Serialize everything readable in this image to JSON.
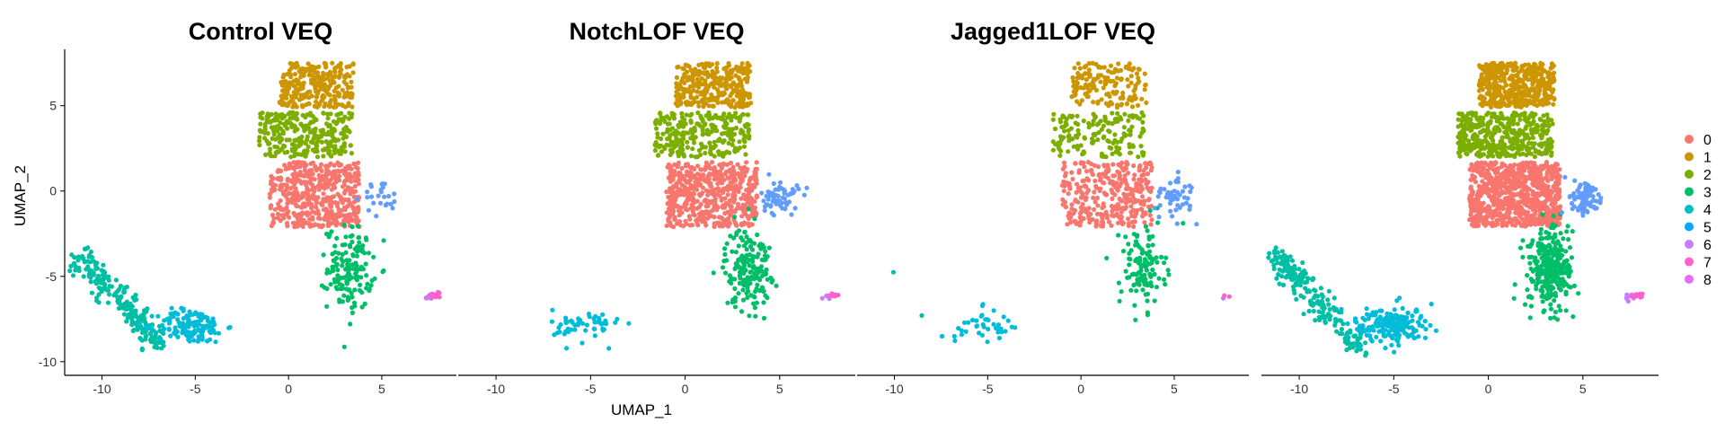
{
  "chart_data": {
    "type": "scatter",
    "xlabel": "UMAP_1",
    "ylabel": "UMAP_2",
    "xlim": [
      -12,
      9
    ],
    "ylim": [
      -10.8,
      8.3
    ],
    "x_ticks": [
      -10,
      -5,
      0,
      5
    ],
    "y_ticks": [
      -10,
      -5,
      0,
      5
    ],
    "x_tick_labels": [
      "-10",
      "-5",
      "0",
      "5"
    ],
    "y_tick_labels": [
      "-10",
      "-5",
      "0",
      "5"
    ],
    "grid": false,
    "legend_position": "right",
    "legend": [
      {
        "label": "0",
        "color": "#F8766D"
      },
      {
        "label": "1",
        "color": "#CD9600"
      },
      {
        "label": "2",
        "color": "#7CAE00"
      },
      {
        "label": "3",
        "color": "#00BE67"
      },
      {
        "label": "4",
        "color": "#00BFC4"
      },
      {
        "label": "5",
        "color": "#00A9FF"
      },
      {
        "label": "6",
        "color": "#C77CFF"
      },
      {
        "label": "7",
        "color": "#FF61CC"
      },
      {
        "label": "8",
        "color": "#E76BF3"
      }
    ],
    "clusters": [
      {
        "id": "0",
        "color": "#F8766D",
        "center": [
          1.4,
          -0.2
        ],
        "spread": [
          1.7,
          1.3
        ]
      },
      {
        "id": "1",
        "color": "#CD9600",
        "center": [
          1.5,
          6.2
        ],
        "spread": [
          1.2,
          0.8
        ]
      },
      {
        "id": "2",
        "color": "#7CAE00",
        "center": [
          0.9,
          3.3
        ],
        "spread": [
          1.5,
          0.8
        ]
      },
      {
        "id": "3",
        "color": "#00BE67",
        "center": [
          3.3,
          -4.5
        ],
        "spread": [
          0.6,
          1.2
        ]
      },
      {
        "id": "4",
        "color": "#00BFA5",
        "center": [
          -8.8,
          -6.5
        ],
        "spread": [
          1.2,
          1.5
        ]
      },
      {
        "id": "5",
        "color": "#00BCD8",
        "center": [
          -5.2,
          -7.9
        ],
        "spread": [
          0.9,
          0.5
        ]
      },
      {
        "id": "6",
        "color": "#619CFF",
        "center": [
          5.0,
          -0.4
        ],
        "spread": [
          0.5,
          0.5
        ]
      },
      {
        "id": "7",
        "color": "#C77CFF",
        "center": [
          7.6,
          -6.2
        ],
        "spread": [
          0.15,
          0.1
        ]
      },
      {
        "id": "8",
        "color": "#FF61CC",
        "center": [
          7.9,
          -6.1
        ],
        "spread": [
          0.15,
          0.1
        ]
      }
    ],
    "panels": [
      {
        "title": "Control VEQ",
        "counts": {
          "0": 480,
          "1": 260,
          "2": 280,
          "3": 150,
          "4": 220,
          "5": 150,
          "6": 25,
          "7": 8,
          "8": 10
        }
      },
      {
        "title": "NotchLOF VEQ",
        "counts": {
          "0": 520,
          "1": 300,
          "2": 260,
          "3": 180,
          "4": 0,
          "5": 55,
          "6": 60,
          "7": 4,
          "8": 8
        }
      },
      {
        "title": "Jagged1LOF VEQ",
        "counts": {
          "0": 320,
          "1": 150,
          "2": 150,
          "3": 120,
          "4": 2,
          "5": 40,
          "6": 50,
          "7": 1,
          "8": 2
        }
      },
      {
        "title": "",
        "counts": {
          "0": 800,
          "1": 450,
          "2": 420,
          "3": 280,
          "4": 200,
          "5": 200,
          "6": 80,
          "7": 10,
          "8": 12
        }
      }
    ]
  }
}
